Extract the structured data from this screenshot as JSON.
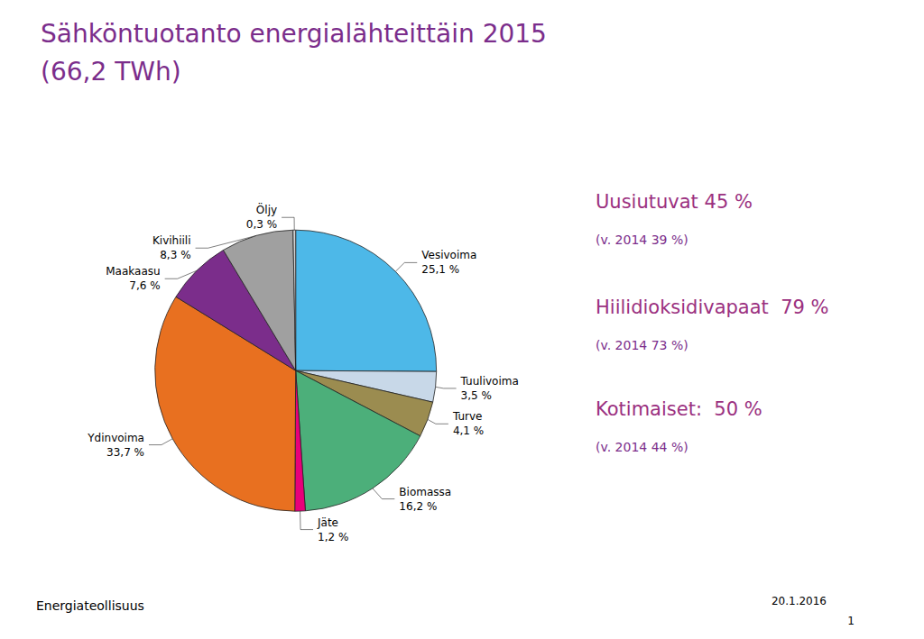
{
  "chart_data": {
    "type": "pie",
    "title": "Sähköntuotanto energialähteittäin 2015",
    "subtitle": "(66,2 TWh)",
    "categories": [
      "Vesivoima",
      "Tuulivoima",
      "Turve",
      "Biomassa",
      "Jäte",
      "Ydinvoima",
      "Maakaasu",
      "Kivihiili",
      "Öljy"
    ],
    "values": [
      25.1,
      3.5,
      4.1,
      16.2,
      1.2,
      33.7,
      7.6,
      8.3,
      0.3
    ],
    "value_labels": [
      "25,1 %",
      "3,5 %",
      "4,1 %",
      "16,2 %",
      "1,2 %",
      "33,7 %",
      "7,6 %",
      "8,3 %",
      "0,3 %"
    ],
    "colors": [
      "#4DB8E8",
      "#C8D8E8",
      "#9B8C50",
      "#4CAF7A",
      "#E8007A",
      "#E87020",
      "#7B2D8B",
      "#A0A0A0",
      "#D4D4D4"
    ],
    "data_labels": true,
    "annotations": [
      {
        "text": "Uusiutuvat 45 %",
        "subtext": "(v. 2014 39 %)"
      },
      {
        "text": "Hiilidioksidivapaat  79 %",
        "subtext": "(v. 2014 73 %)"
      },
      {
        "text": "Kotimaiset:  50 %",
        "subtext": "(v. 2014 44 %)"
      },
      {
        "text": "Energiateollisuus"
      },
      {
        "text": "20.1.2016"
      },
      {
        "text": "1"
      }
    ]
  }
}
